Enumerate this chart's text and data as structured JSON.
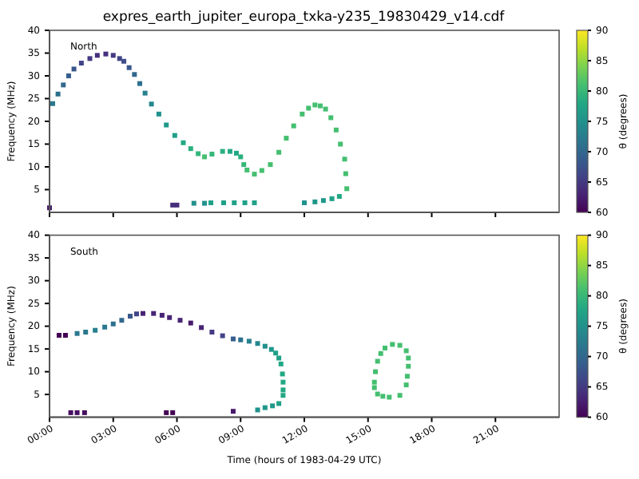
{
  "chart_data": [
    {
      "type": "scatter",
      "title": "expres_earth_jupiter_europa_txka-y235_19830429_v14.cdf",
      "ylabel": "Frequency (MHz)",
      "clabel": "θ (degrees)",
      "annotations": [
        "North"
      ],
      "marker": "square",
      "tick_labels": "y",
      "xlim": [
        0,
        24
      ],
      "xticks": [
        {
          "value": 0,
          "label": null
        },
        {
          "value": 3,
          "label": null
        },
        {
          "value": 6,
          "label": null
        },
        {
          "value": 9,
          "label": null
        },
        {
          "value": 12,
          "label": null
        },
        {
          "value": 15,
          "label": null
        },
        {
          "value": 18,
          "label": null
        },
        {
          "value": 21,
          "label": null
        }
      ],
      "ylim": [
        0,
        40
      ],
      "yticks": [
        5,
        10,
        15,
        20,
        25,
        30,
        35,
        40
      ],
      "clim": [
        60,
        90
      ],
      "cticks": [
        60,
        65,
        70,
        75,
        80,
        85,
        90
      ],
      "x": [
        0.0,
        0.15,
        0.4,
        0.65,
        0.9,
        1.15,
        1.5,
        1.9,
        2.25,
        2.65,
        3.0,
        3.3,
        3.5,
        3.75,
        4.0,
        4.25,
        4.5,
        4.8,
        5.15,
        5.5,
        5.9,
        6.3,
        6.65,
        7.0,
        7.3,
        7.65,
        8.15,
        8.5,
        8.8,
        9.0,
        9.15,
        9.3,
        9.65,
        10.0,
        10.4,
        10.8,
        11.15,
        11.5,
        11.9,
        12.2,
        12.5,
        12.75,
        13.0,
        13.25,
        13.5,
        13.7,
        13.9,
        13.95,
        14.0,
        13.65,
        13.3,
        12.9,
        12.5,
        12.0,
        9.65,
        9.2,
        8.7,
        8.2,
        7.6,
        7.3,
        6.8,
        6.0,
        5.8
      ],
      "values": [
        1.0,
        23.9,
        26,
        28,
        30,
        31.5,
        32.8,
        33.8,
        34.5,
        34.8,
        34.5,
        33.8,
        33.2,
        31.8,
        30.3,
        28.3,
        26.2,
        23.8,
        21.6,
        19.2,
        16.9,
        15.3,
        14,
        12.9,
        12.2,
        12.8,
        13.4,
        13.4,
        13,
        12.2,
        10.5,
        9.3,
        8.4,
        9.2,
        10.5,
        13.2,
        16.3,
        19,
        21.6,
        22.9,
        23.6,
        23.4,
        22.7,
        20.8,
        18.1,
        15,
        11.7,
        8.5,
        5.2,
        3.5,
        3.0,
        2.6,
        2.3,
        2.1,
        2.1,
        2.1,
        2.1,
        2.1,
        2.1,
        2.0,
        2.0,
        1.6,
        1.6
      ],
      "cvalues": [
        62,
        72,
        71,
        70,
        69,
        68,
        66,
        65,
        64,
        64,
        65,
        66,
        67,
        68,
        70,
        71,
        73,
        74,
        75,
        76,
        77,
        78,
        79,
        80,
        81,
        80,
        79,
        78,
        78,
        79,
        80,
        81,
        81,
        81,
        81,
        81,
        81,
        81,
        81,
        81,
        81,
        81,
        81,
        81,
        81,
        81,
        81,
        81,
        81,
        78,
        77,
        76,
        76,
        75,
        77,
        77,
        77,
        77,
        77,
        75,
        75,
        64,
        64
      ]
    },
    {
      "type": "scatter",
      "xlabel": "Time (hours of 1983-04-29 UTC)",
      "ylabel": "Frequency (MHz)",
      "clabel": "θ (degrees)",
      "annotations": [
        "South"
      ],
      "marker": "square",
      "xlim": [
        0,
        24
      ],
      "xticks": [
        {
          "value": 0,
          "label": "00:00"
        },
        {
          "value": 3,
          "label": "03:00"
        },
        {
          "value": 6,
          "label": "06:00"
        },
        {
          "value": 9,
          "label": "09:00"
        },
        {
          "value": 12,
          "label": "12:00"
        },
        {
          "value": 15,
          "label": "15:00"
        },
        {
          "value": 18,
          "label": "18:00"
        },
        {
          "value": 21,
          "label": "21:00"
        }
      ],
      "ylim": [
        0,
        40
      ],
      "yticks": [
        5,
        10,
        15,
        20,
        25,
        30,
        35,
        40
      ],
      "clim": [
        60,
        90
      ],
      "cticks": [
        60,
        65,
        70,
        75,
        80,
        85,
        90
      ],
      "x": [
        0.45,
        0.75,
        1.3,
        1.7,
        2.15,
        2.6,
        3.0,
        3.4,
        3.8,
        4.1,
        4.4,
        4.9,
        5.3,
        5.65,
        6.15,
        6.65,
        7.15,
        7.65,
        8.15,
        8.65,
        9.0,
        9.4,
        9.8,
        10.15,
        10.45,
        10.65,
        10.8,
        10.9,
        10.97,
        11.0,
        11.0,
        11.0,
        10.8,
        10.5,
        10.15,
        9.8,
        8.65,
        5.5,
        5.8,
        1.0,
        1.3,
        1.65,
        15.8,
        16.15,
        16.5,
        16.8,
        16.9,
        16.9,
        16.85,
        16.8,
        16.5,
        16.0,
        15.7,
        15.45,
        15.3,
        15.3,
        15.35,
        15.45,
        15.6
      ],
      "values": [
        18,
        18,
        18.4,
        18.7,
        19.1,
        19.8,
        20.5,
        21.3,
        22.2,
        22.7,
        22.8,
        22.8,
        22.4,
        21.9,
        21.3,
        20.7,
        19.7,
        18.7,
        17.9,
        17.2,
        17,
        16.7,
        16.2,
        15.6,
        14.9,
        14.1,
        13,
        11.7,
        9.5,
        7.7,
        6,
        4.8,
        3.0,
        2.5,
        2.1,
        1.6,
        1.3,
        1.0,
        1.0,
        1.0,
        1.0,
        1.0,
        15.2,
        16,
        15.8,
        14.6,
        13,
        11.2,
        9,
        7.1,
        4.8,
        4.4,
        4.6,
        5.1,
        6.5,
        7.7,
        10,
        12.3,
        14
      ],
      "cvalues": [
        60,
        60,
        72,
        72,
        73,
        72,
        71,
        70,
        68,
        66,
        63,
        63,
        63,
        63,
        63,
        62,
        63,
        65,
        66,
        69,
        71,
        73,
        74,
        75,
        76,
        77,
        77,
        78,
        78,
        78,
        78,
        78,
        77,
        76,
        76,
        75,
        62,
        60,
        60,
        61,
        61,
        61,
        81,
        81,
        81,
        81,
        81,
        81,
        81,
        81,
        81,
        81,
        81,
        81,
        81,
        81,
        81,
        81,
        81
      ]
    }
  ]
}
